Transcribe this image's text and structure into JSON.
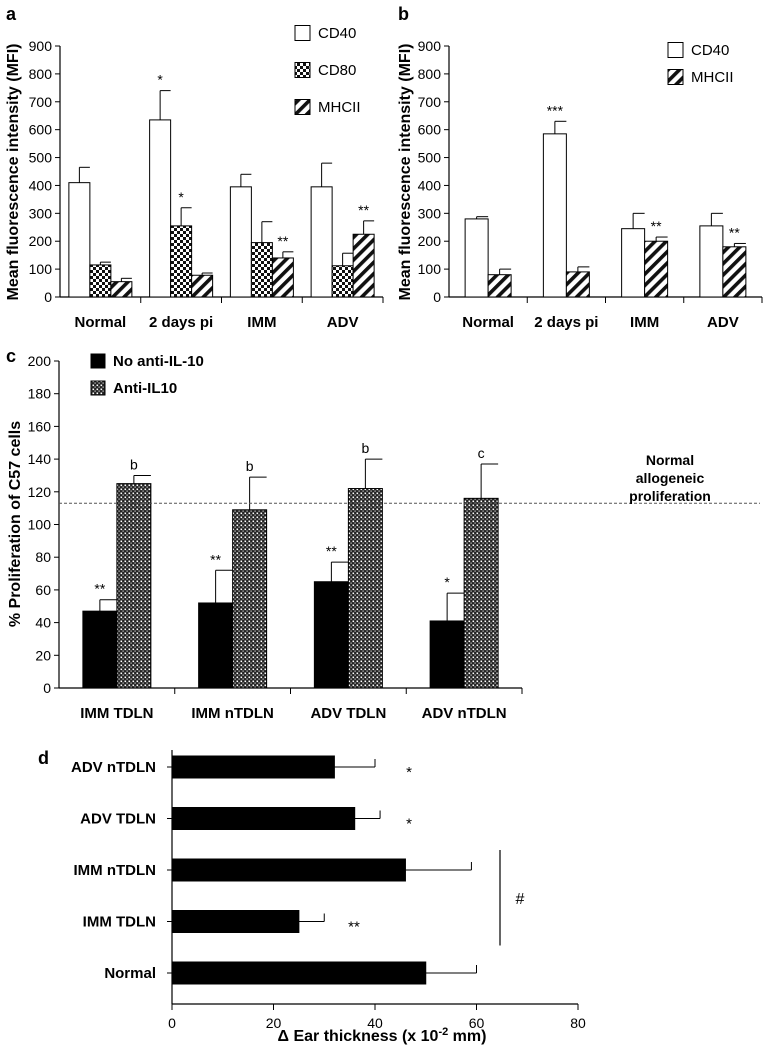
{
  "figure": {
    "panels": [
      "a",
      "b",
      "c",
      "d"
    ]
  },
  "chart_data": [
    {
      "id": "a",
      "type": "bar",
      "panel_label": "a",
      "ylabel": "Mean fluorescence intensity (MFI)",
      "xlabel": "",
      "ylim": [
        0,
        900
      ],
      "ytick_step": 100,
      "categories": [
        "Normal",
        "2 days pi",
        "IMM",
        "ADV"
      ],
      "series": [
        {
          "name": "CD40",
          "pattern": "white",
          "values": [
            410,
            635,
            395,
            395
          ],
          "errors": [
            55,
            105,
            45,
            85
          ],
          "sig": [
            "",
            "*",
            "",
            ""
          ]
        },
        {
          "name": "CD80",
          "pattern": "checker",
          "values": [
            115,
            255,
            195,
            112
          ],
          "errors": [
            10,
            65,
            75,
            45
          ],
          "sig": [
            "",
            "*",
            "",
            ""
          ]
        },
        {
          "name": "MHCII",
          "pattern": "diag",
          "values": [
            55,
            78,
            140,
            225
          ],
          "errors": [
            12,
            8,
            22,
            48
          ],
          "sig": [
            "",
            "",
            "**",
            "**"
          ]
        }
      ],
      "legend": "top-right"
    },
    {
      "id": "b",
      "type": "bar",
      "panel_label": "b",
      "ylabel": "Mean fluorescence intensity (MFI)",
      "xlabel": "",
      "ylim": [
        0,
        900
      ],
      "ytick_step": 100,
      "categories": [
        "Normal",
        "2 days pi",
        "IMM",
        "ADV"
      ],
      "series": [
        {
          "name": "CD40",
          "pattern": "white",
          "values": [
            280,
            585,
            245,
            255
          ],
          "errors": [
            8,
            45,
            55,
            45
          ],
          "sig": [
            "",
            "***",
            "",
            ""
          ]
        },
        {
          "name": "MHCII",
          "pattern": "diag",
          "values": [
            80,
            90,
            200,
            180
          ],
          "errors": [
            20,
            18,
            15,
            12
          ],
          "sig": [
            "",
            "",
            "**",
            "**"
          ]
        }
      ],
      "legend": "top-right"
    },
    {
      "id": "c",
      "type": "bar",
      "panel_label": "c",
      "ylabel": "% Proliferation of C57 cells",
      "xlabel": "",
      "ylim": [
        0,
        200
      ],
      "ytick_step": 20,
      "categories": [
        "IMM TDLN",
        "IMM nTDLN",
        "ADV TDLN",
        "ADV nTDLN"
      ],
      "series": [
        {
          "name": "No anti-IL-10",
          "pattern": "black",
          "values": [
            47,
            52,
            65,
            41
          ],
          "errors": [
            7,
            20,
            12,
            17
          ],
          "sig": [
            "**",
            "**",
            "**",
            "*"
          ]
        },
        {
          "name": "Anti-IL10",
          "pattern": "dense",
          "values": [
            125,
            109,
            122,
            116
          ],
          "errors": [
            5,
            20,
            18,
            21
          ],
          "sig": [
            "b",
            "b",
            "b",
            "c"
          ]
        }
      ],
      "reference_line": {
        "value": 113,
        "label_lines": [
          "Normal",
          "allogeneic",
          "proliferation"
        ]
      },
      "legend": "top-left"
    },
    {
      "id": "d",
      "type": "hbar",
      "panel_label": "d",
      "xlabel_prefix": "Δ Ear thickness  (x 10",
      "xlabel_sup": "-2",
      "xlabel_suffix": " mm)",
      "xlim": [
        0,
        80
      ],
      "xtick_step": 20,
      "categories": [
        "ADV nTDLN",
        "ADV TDLN",
        "IMM nTDLN",
        "IMM TDLN",
        "Normal"
      ],
      "values": [
        32,
        36,
        46,
        25,
        50
      ],
      "errors": [
        8,
        5,
        13,
        5,
        10
      ],
      "sig": [
        "*",
        "*",
        "",
        "**",
        ""
      ],
      "bracket": {
        "label": "#",
        "from": "IMM nTDLN",
        "to": "IMM TDLN"
      }
    }
  ]
}
